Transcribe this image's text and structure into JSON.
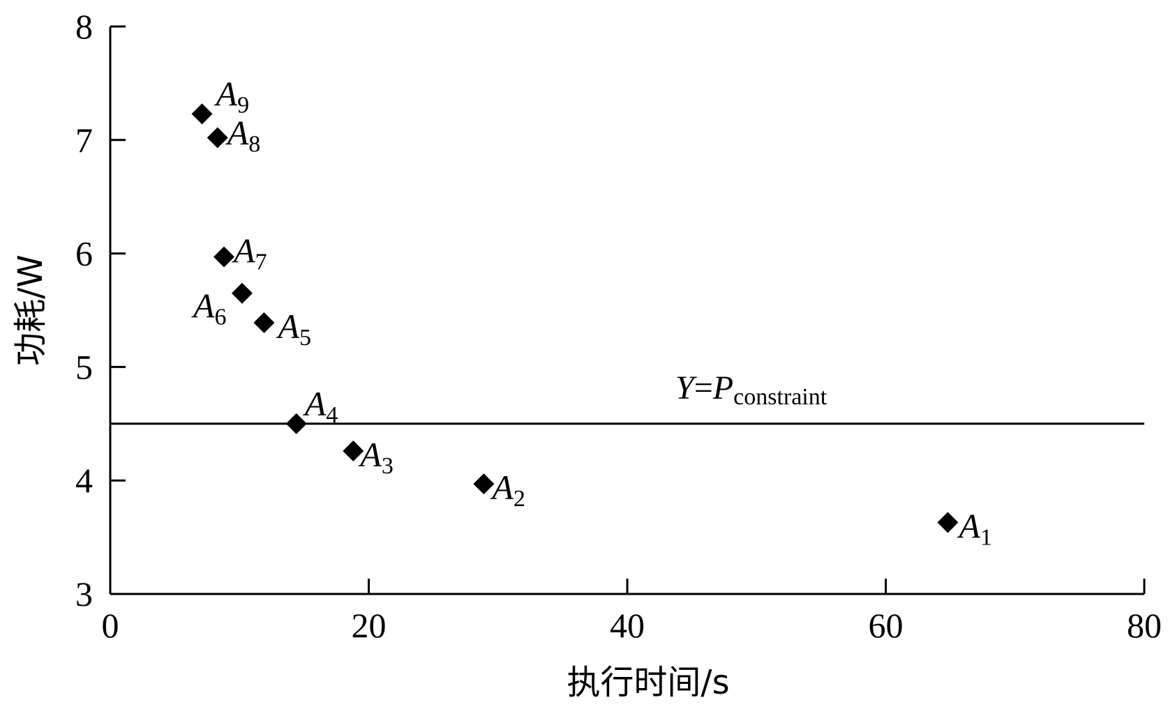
{
  "chart_data": {
    "type": "scatter",
    "xlabel": "执行时间/s",
    "ylabel": "功耗/W",
    "xlim": [
      0,
      80
    ],
    "ylim": [
      3,
      8
    ],
    "xticks": [
      "0",
      "20",
      "40",
      "60",
      "80"
    ],
    "yticks": [
      "3",
      "4",
      "5",
      "6",
      "7",
      "8"
    ],
    "grid": false,
    "marker": "diamond",
    "marker_color": "#000000",
    "points": [
      {
        "label": "A",
        "sub": "1",
        "x": 64.8,
        "y": 3.63
      },
      {
        "label": "A",
        "sub": "2",
        "x": 28.9,
        "y": 3.97
      },
      {
        "label": "A",
        "sub": "3",
        "x": 18.8,
        "y": 4.26
      },
      {
        "label": "A",
        "sub": "4",
        "x": 14.4,
        "y": 4.5
      },
      {
        "label": "A",
        "sub": "5",
        "x": 11.9,
        "y": 5.39
      },
      {
        "label": "A",
        "sub": "6",
        "x": 10.2,
        "y": 5.65
      },
      {
        "label": "A",
        "sub": "7",
        "x": 8.8,
        "y": 5.97
      },
      {
        "label": "A",
        "sub": "8",
        "x": 8.3,
        "y": 7.02
      },
      {
        "label": "A",
        "sub": "9",
        "x": 7.1,
        "y": 7.23
      }
    ],
    "constraint_line": {
      "y": 4.5,
      "label_main": "Y=P",
      "label_y": "Y",
      "label_eq": "=",
      "label_p": "P",
      "label_sub": "constraint"
    }
  }
}
